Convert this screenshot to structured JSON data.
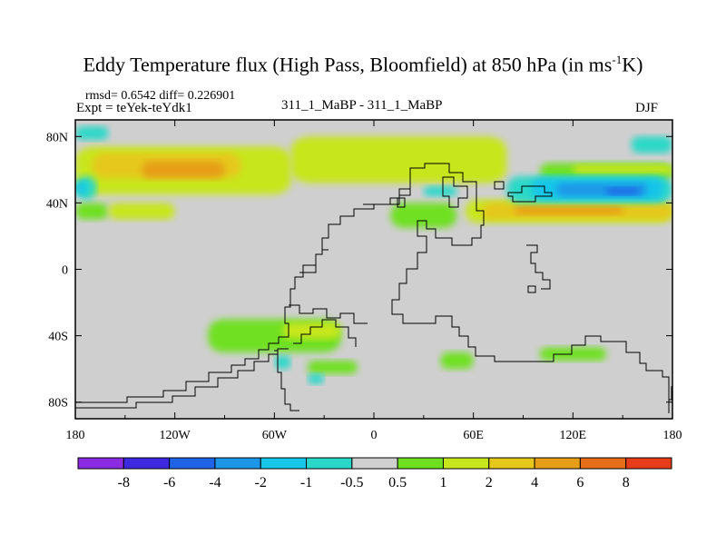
{
  "chart_data": {
    "type": "heatmap",
    "title_main": "Eddy Temperature flux (High Pass, Bloomfield) at 850 hPa (in ms",
    "title_sup": "-1",
    "title_end": "K)",
    "stats": "rmsd= 0.6542 diff= 0.226901",
    "experiment": "Expt = teYek-teYdk1",
    "case": "311_1_MaBP - 311_1_MaBP",
    "season": "DJF",
    "x_range": [
      -180,
      180
    ],
    "y_range": [
      -90,
      90
    ],
    "x_ticks": [
      {
        "value": -180,
        "label": "180"
      },
      {
        "value": -120,
        "label": "120W"
      },
      {
        "value": -60,
        "label": "60W"
      },
      {
        "value": 0,
        "label": "0"
      },
      {
        "value": 60,
        "label": "60E"
      },
      {
        "value": 120,
        "label": "120E"
      },
      {
        "value": 180,
        "label": "180"
      }
    ],
    "y_ticks": [
      {
        "value": 80,
        "label": "80N"
      },
      {
        "value": 40,
        "label": "40N"
      },
      {
        "value": 0,
        "label": "0"
      },
      {
        "value": -40,
        "label": "40S"
      },
      {
        "value": -80,
        "label": "80S"
      }
    ],
    "colorbar": {
      "colors": [
        "#8a2be2",
        "#3d2ae0",
        "#1f63e6",
        "#1e96e8",
        "#18c6e8",
        "#29d8c8",
        "#cfcfcf",
        "#6fe020",
        "#c8e61e",
        "#e6c81c",
        "#e69e19",
        "#e66e19",
        "#e63c19"
      ],
      "labels": [
        "-8",
        "-6",
        "-4",
        "-2",
        "-1",
        "-0.5",
        "0.5",
        "1",
        "2",
        "4",
        "6",
        "8"
      ]
    },
    "regions": [
      {
        "level": "1",
        "lon": [
          -180,
          -50
        ],
        "lat": [
          45,
          74
        ]
      },
      {
        "level": "1",
        "lon": [
          -50,
          80
        ],
        "lat": [
          52,
          80
        ]
      },
      {
        "level": "2",
        "lon": [
          -170,
          -80
        ],
        "lat": [
          55,
          70
        ]
      },
      {
        "level": "4",
        "lon": [
          -140,
          -90
        ],
        "lat": [
          55,
          65
        ]
      },
      {
        "level": "0.5",
        "lon": [
          -180,
          -160
        ],
        "lat": [
          30,
          40
        ]
      },
      {
        "level": "1",
        "lon": [
          -160,
          -120
        ],
        "lat": [
          30,
          40
        ]
      },
      {
        "level": "-0.5",
        "lon": [
          -180,
          -167
        ],
        "lat": [
          42,
          56
        ]
      },
      {
        "level": "-1",
        "lon": [
          -180,
          -173
        ],
        "lat": [
          45,
          53
        ]
      },
      {
        "level": "-0.5",
        "lon": [
          -180,
          -160
        ],
        "lat": [
          78,
          86
        ]
      },
      {
        "level": "1",
        "lon": [
          55,
          180
        ],
        "lat": [
          28,
          42
        ]
      },
      {
        "level": "2",
        "lon": [
          65,
          180
        ],
        "lat": [
          30,
          40
        ]
      },
      {
        "level": "4",
        "lon": [
          85,
          150
        ],
        "lat": [
          33,
          38
        ]
      },
      {
        "level": "0.5",
        "lon": [
          100,
          180
        ],
        "lat": [
          53,
          64
        ]
      },
      {
        "level": "1",
        "lon": [
          120,
          180
        ],
        "lat": [
          57,
          63
        ]
      },
      {
        "level": "-0.5",
        "lon": [
          80,
          180
        ],
        "lat": [
          40,
          56
        ]
      },
      {
        "level": "-1",
        "lon": [
          95,
          175
        ],
        "lat": [
          42,
          55
        ]
      },
      {
        "level": "-2",
        "lon": [
          110,
          165
        ],
        "lat": [
          44,
          52
        ]
      },
      {
        "level": "-4",
        "lon": [
          140,
          160
        ],
        "lat": [
          45,
          49
        ]
      },
      {
        "level": "-0.5",
        "lon": [
          155,
          180
        ],
        "lat": [
          70,
          80
        ]
      },
      {
        "level": "-0.5",
        "lon": [
          30,
          50
        ],
        "lat": [
          44,
          50
        ]
      },
      {
        "level": "0.5",
        "lon": [
          10,
          50
        ],
        "lat": [
          25,
          40
        ]
      },
      {
        "level": "0.5",
        "lon": [
          -100,
          -20
        ],
        "lat": [
          -50,
          -30
        ]
      },
      {
        "level": "1",
        "lon": [
          -55,
          -20
        ],
        "lat": [
          -42,
          -32
        ]
      },
      {
        "level": "0.5",
        "lon": [
          -40,
          -10
        ],
        "lat": [
          -63,
          -55
        ]
      },
      {
        "level": "-0.5",
        "lon": [
          -60,
          -50
        ],
        "lat": [
          -60,
          -52
        ]
      },
      {
        "level": "-0.5",
        "lon": [
          -40,
          -30
        ],
        "lat": [
          -69,
          -63
        ]
      },
      {
        "level": "0.5",
        "lon": [
          40,
          60
        ],
        "lat": [
          -60,
          -50
        ]
      },
      {
        "level": "0.5",
        "lon": [
          100,
          140
        ],
        "lat": [
          -55,
          -47
        ]
      }
    ]
  }
}
